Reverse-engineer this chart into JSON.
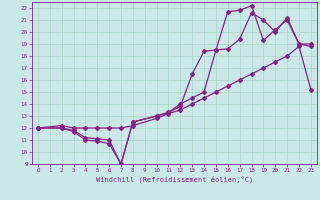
{
  "xlabel": "Windchill (Refroidissement éolien,°C)",
  "xlim": [
    -0.5,
    23.5
  ],
  "ylim": [
    9,
    22.5
  ],
  "xticks": [
    0,
    1,
    2,
    3,
    4,
    5,
    6,
    7,
    8,
    9,
    10,
    11,
    12,
    13,
    14,
    15,
    16,
    17,
    18,
    19,
    20,
    21,
    22,
    23
  ],
  "yticks": [
    9,
    10,
    11,
    12,
    13,
    14,
    15,
    16,
    17,
    18,
    19,
    20,
    21,
    22
  ],
  "bg_color": "#cbe8e8",
  "grid_color": "#a8d4c8",
  "line_color": "#882288",
  "line1_x": [
    0,
    2,
    3,
    4,
    5,
    6,
    7,
    8,
    10,
    11,
    12,
    13,
    14,
    15,
    16,
    17,
    18,
    19,
    20,
    21,
    22,
    23
  ],
  "line1_y": [
    12.0,
    12.0,
    11.8,
    11.2,
    11.1,
    11.0,
    9.0,
    12.5,
    13.0,
    13.3,
    13.8,
    16.5,
    18.4,
    18.5,
    18.6,
    19.4,
    21.6,
    21.0,
    20.0,
    21.2,
    19.0,
    19.0
  ],
  "line2_x": [
    0,
    2,
    3,
    4,
    5,
    6,
    7,
    8,
    10,
    11,
    12,
    13,
    14,
    15,
    16,
    17,
    18,
    19,
    20,
    21,
    22,
    23
  ],
  "line2_y": [
    12.0,
    12.0,
    11.7,
    11.0,
    10.9,
    10.7,
    9.0,
    12.5,
    13.0,
    13.3,
    14.0,
    14.5,
    15.0,
    18.5,
    21.7,
    21.8,
    22.2,
    19.3,
    20.2,
    21.0,
    19.0,
    18.8
  ],
  "line3_x": [
    0,
    2,
    3,
    4,
    5,
    6,
    7,
    8,
    10,
    11,
    12,
    13,
    14,
    15,
    16,
    17,
    18,
    19,
    20,
    21,
    22,
    23
  ],
  "line3_y": [
    12.0,
    12.2,
    12.0,
    12.0,
    12.0,
    12.0,
    12.0,
    12.2,
    12.8,
    13.2,
    13.5,
    14.0,
    14.5,
    15.0,
    15.5,
    16.0,
    16.5,
    17.0,
    17.5,
    18.0,
    18.8,
    15.2
  ]
}
